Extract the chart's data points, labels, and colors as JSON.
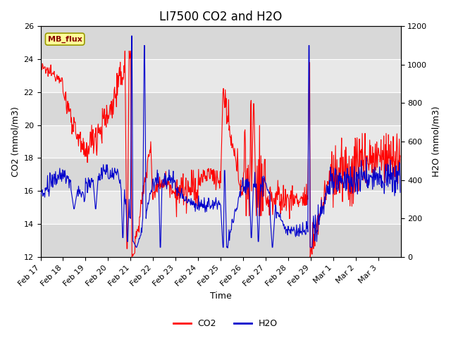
{
  "title": "LI7500 CO2 and H2O",
  "xlabel": "Time",
  "ylabel_left": "CO2 (mmol/m3)",
  "ylabel_right": "H2O (mmol/m3)",
  "ylim_left": [
    12,
    26
  ],
  "ylim_right": [
    0,
    1200
  ],
  "yticks_left": [
    12,
    14,
    16,
    18,
    20,
    22,
    24,
    26
  ],
  "yticks_right": [
    0,
    200,
    400,
    600,
    800,
    1000,
    1200
  ],
  "co2_color": "#ff0000",
  "h2o_color": "#0000cc",
  "fig_bg_color": "#ffffff",
  "plot_bg_color": "#e8e8e8",
  "band_colors": [
    "#d8d8d8",
    "#e8e8e8"
  ],
  "legend_box_color": "#ffff99",
  "legend_box_edge": "#999900",
  "annotation_text": "MB_flux",
  "title_fontsize": 12,
  "axis_fontsize": 9,
  "tick_fontsize": 8,
  "legend_fontsize": 9,
  "line_width": 0.8
}
